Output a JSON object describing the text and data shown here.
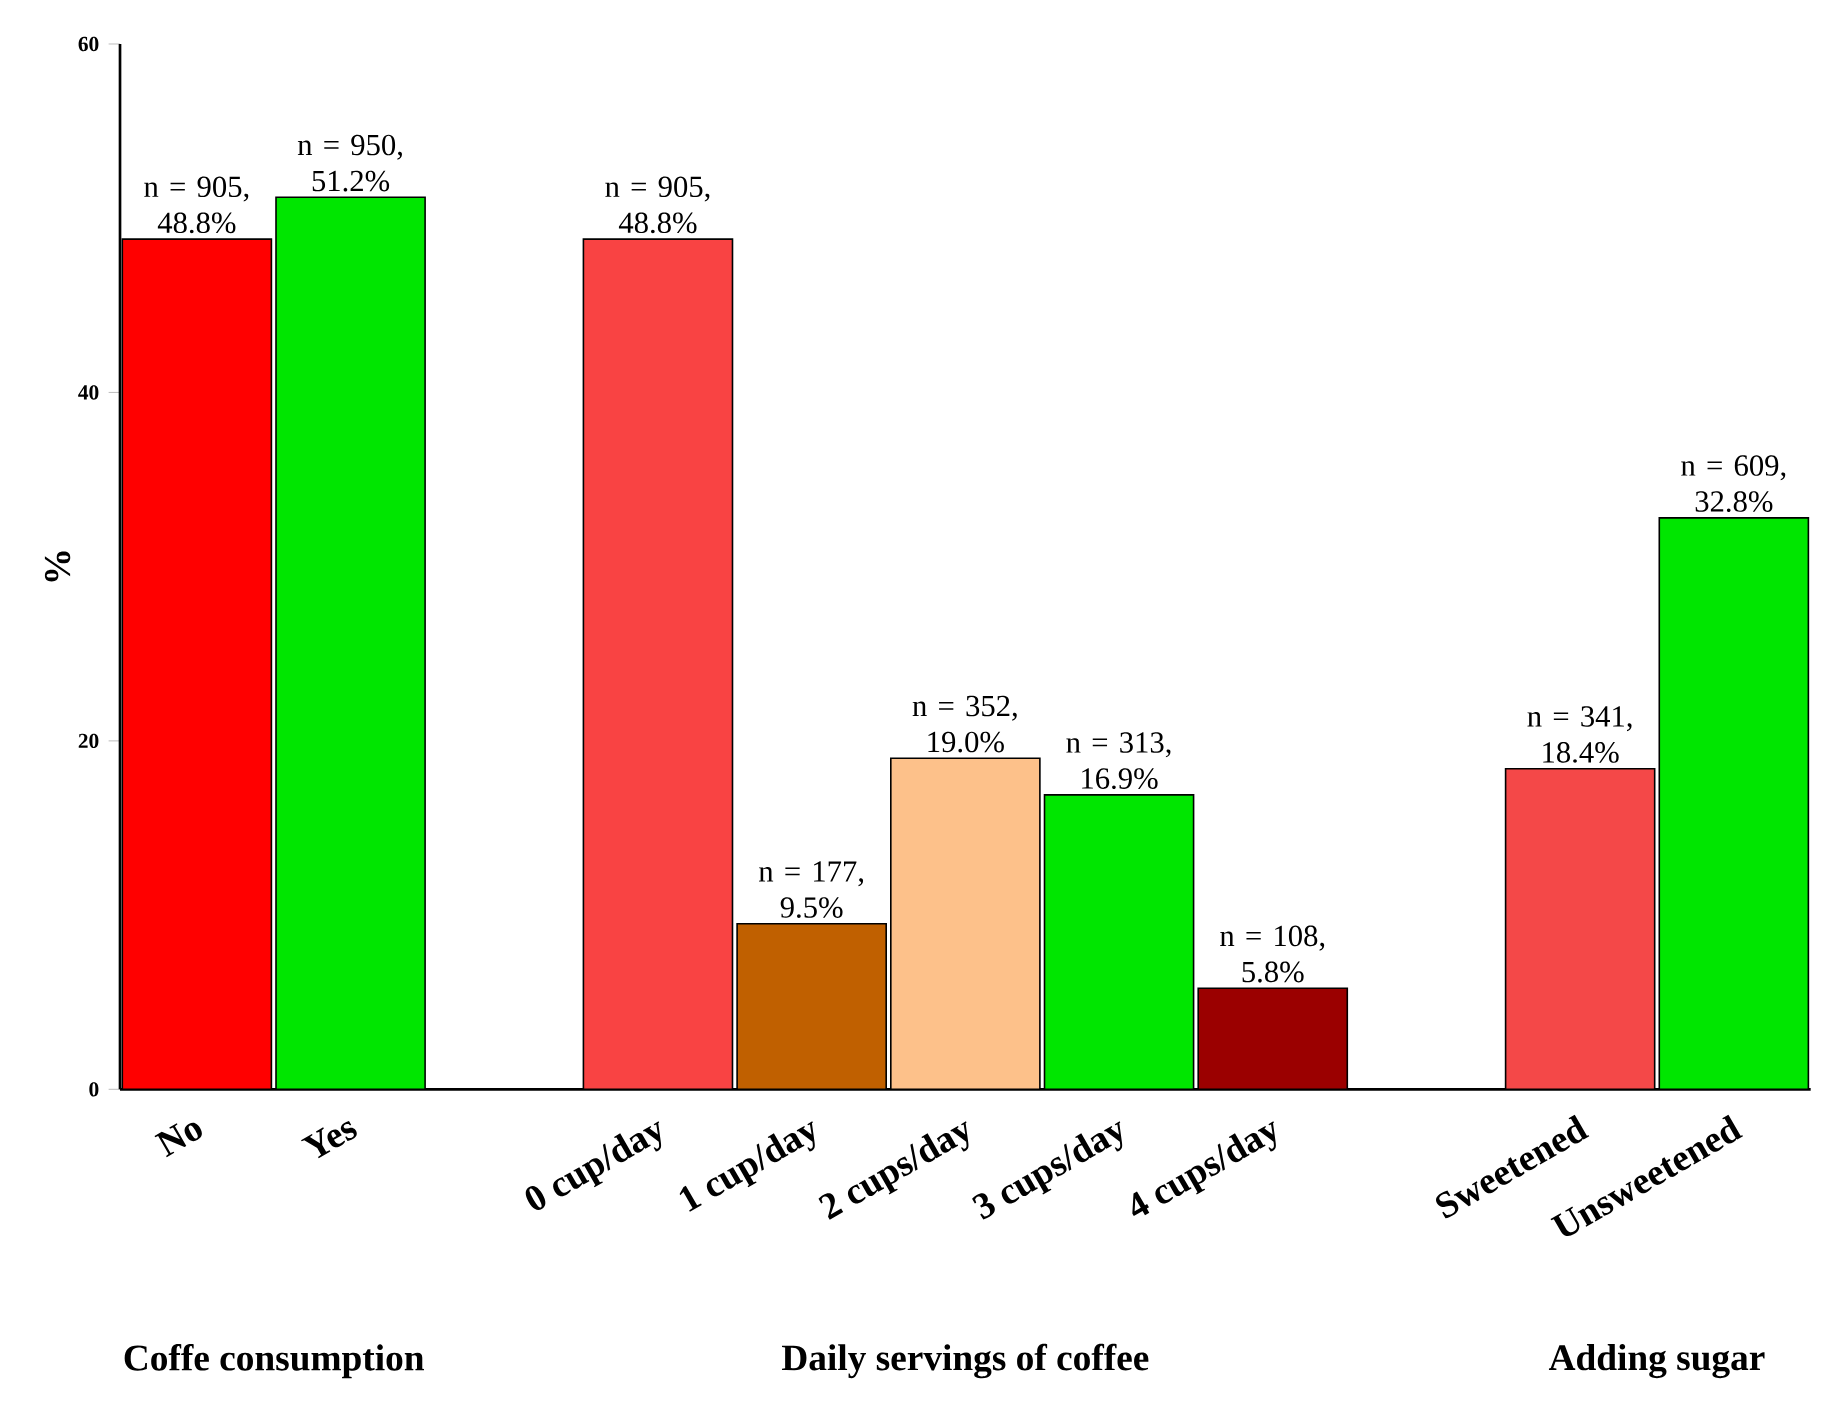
{
  "chart_data": {
    "type": "bar",
    "categories": [
      "No",
      "Yes",
      null,
      "0 cup/day",
      "1 cup/day",
      "2 cups/day",
      "3 cups/day",
      "4 cups/day",
      null,
      "Sweetened",
      "Unsweetened"
    ],
    "values": [
      48.8,
      51.2,
      null,
      48.8,
      9.5,
      19.0,
      16.9,
      5.8,
      null,
      18.4,
      32.8
    ],
    "colors": [
      "#ff0000",
      "#00e600",
      null,
      "#f94343",
      "#c06000",
      "#fdc18a",
      "#00e600",
      "#9b0000",
      null,
      "#f44848",
      "#00e600"
    ],
    "value_labels": [
      "n = 905, 48.8%",
      "n = 950, 51.2%",
      null,
      "n = 905, 48.8%",
      "n = 177, 9.5%",
      "n = 352, 19.0%",
      "n = 313, 16.9%",
      "n = 108, 5.8%",
      null,
      "n = 341, 18.4%",
      "n = 609, 32.8%"
    ],
    "ylabel": "%",
    "ylim": [
      0,
      60
    ],
    "yticks": [
      0,
      20,
      40,
      60
    ],
    "annotations": [
      "Coffe consumption",
      "Daily servings of coffee",
      "Adding sugar"
    ]
  }
}
